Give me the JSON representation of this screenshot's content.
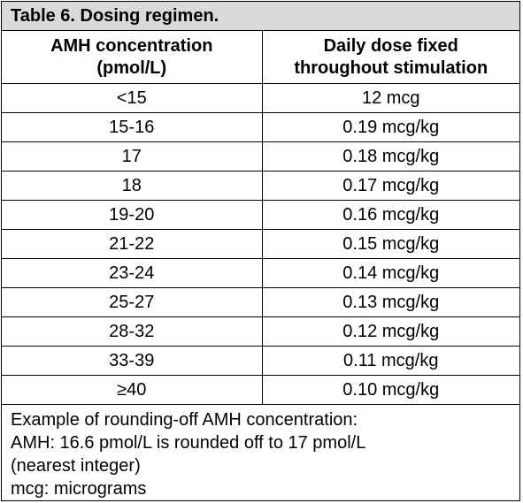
{
  "title": "Table 6. Dosing regimen.",
  "headers": {
    "col1_line1": "AMH concentration",
    "col1_line2": "(pmol/L)",
    "col2_line1": "Daily dose fixed",
    "col2_line2": "throughout stimulation"
  },
  "rows": [
    {
      "amh": "<15",
      "dose": "12 mcg"
    },
    {
      "amh": "15-16",
      "dose": "0.19 mcg/kg"
    },
    {
      "amh": "17",
      "dose": "0.18 mcg/kg"
    },
    {
      "amh": "18",
      "dose": "0.17 mcg/kg"
    },
    {
      "amh": "19-20",
      "dose": "0.16 mcg/kg"
    },
    {
      "amh": "21-22",
      "dose": "0.15 mcg/kg"
    },
    {
      "amh": "23-24",
      "dose": "0.14 mcg/kg"
    },
    {
      "amh": "25-27",
      "dose": "0.13 mcg/kg"
    },
    {
      "amh": "28-32",
      "dose": "0.12 mcg/kg"
    },
    {
      "amh": "33-39",
      "dose": "0.11 mcg/kg"
    },
    {
      "amh": "≥40",
      "dose": "0.10 mcg/kg"
    }
  ],
  "notes": [
    "Example of rounding-off AMH concentration:",
    "AMH: 16.6 pmol/L is rounded off to 17 pmol/L",
    "(nearest integer)",
    "mcg: micrograms"
  ]
}
